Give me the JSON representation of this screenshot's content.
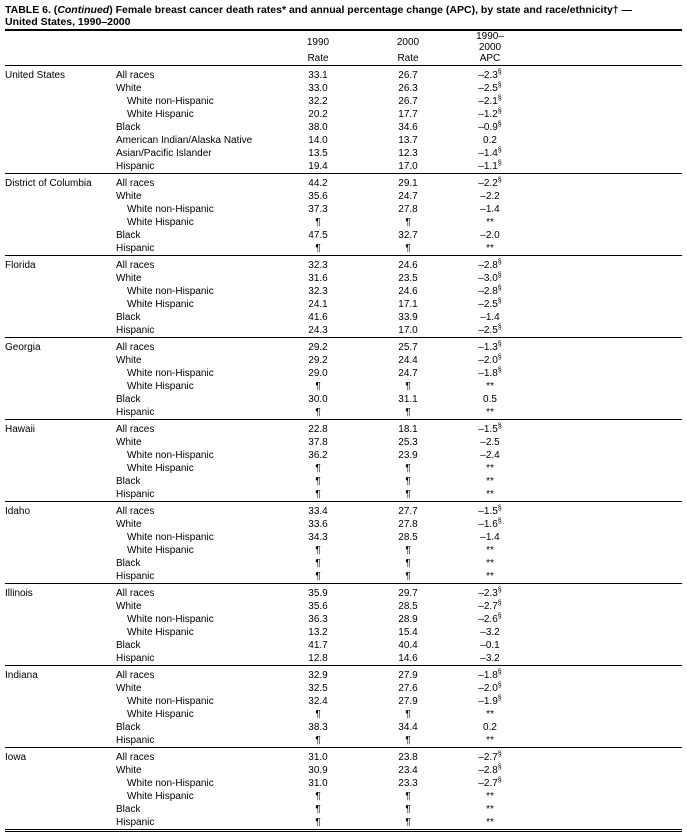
{
  "header": {
    "title_prefix": "TABLE 6. (",
    "title_italic": "Continued",
    "title_rest": ") Female breast cancer death rates* and annual percentage change (APC), by state and race/ethnicity† —",
    "title_line2": "United States, 1990–2000"
  },
  "columns": [
    {
      "top": "1990",
      "bottom": "Rate"
    },
    {
      "top": "2000",
      "bottom": "Rate"
    },
    {
      "top": "1990–2000",
      "bottom": "APC"
    }
  ],
  "groups": [
    {
      "state": "United States",
      "rows": [
        {
          "race": "All races",
          "r1990": "33.1",
          "r2000": "26.7",
          "apc": "–2.3",
          "note": "§"
        },
        {
          "race": "White",
          "r1990": "33.0",
          "r2000": "26.3",
          "apc": "–2.5",
          "note": "§"
        },
        {
          "race": "White non-Hispanic",
          "indent": true,
          "r1990": "32.2",
          "r2000": "26.7",
          "apc": "–2.1",
          "note": "§"
        },
        {
          "race": "White Hispanic",
          "indent": true,
          "r1990": "20.2",
          "r2000": "17.7",
          "apc": "–1.2",
          "note": "§"
        },
        {
          "race": "Black",
          "r1990": "38.0",
          "r2000": "34.6",
          "apc": "–0.9",
          "note": "§"
        },
        {
          "race": "American Indian/Alaska Native",
          "r1990": "14.0",
          "r2000": "13.7",
          "apc": "0.2"
        },
        {
          "race": "Asian/Pacific Islander",
          "r1990": "13.5",
          "r2000": "12.3",
          "apc": "–1.4",
          "note": "§"
        },
        {
          "race": "Hispanic",
          "r1990": "19.4",
          "r2000": "17.0",
          "apc": "–1.1",
          "note": "§"
        }
      ]
    },
    {
      "state": "District of Columbia",
      "rows": [
        {
          "race": "All races",
          "r1990": "44.2",
          "r2000": "29.1",
          "apc": "–2.2",
          "note": "§"
        },
        {
          "race": "White",
          "r1990": "35.6",
          "r2000": "24.7",
          "apc": "–2.2"
        },
        {
          "race": "White non-Hispanic",
          "indent": true,
          "r1990": "37.3",
          "r2000": "27.8",
          "apc": "–1.4"
        },
        {
          "race": "White Hispanic",
          "indent": true,
          "r1990": "¶",
          "r2000": "¶",
          "apc": "**"
        },
        {
          "race": "Black",
          "r1990": "47.5",
          "r2000": "32.7",
          "apc": "–2.0"
        },
        {
          "race": "Hispanic",
          "r1990": "¶",
          "r2000": "¶",
          "apc": "**"
        }
      ]
    },
    {
      "state": "Florida",
      "rows": [
        {
          "race": "All races",
          "r1990": "32.3",
          "r2000": "24.6",
          "apc": "–2.8",
          "note": "§"
        },
        {
          "race": "White",
          "r1990": "31.6",
          "r2000": "23.5",
          "apc": "–3.0",
          "note": "§"
        },
        {
          "race": "White non-Hispanic",
          "indent": true,
          "r1990": "32.3",
          "r2000": "24.6",
          "apc": "–2.8",
          "note": "§"
        },
        {
          "race": "White Hispanic",
          "indent": true,
          "r1990": "24.1",
          "r2000": "17.1",
          "apc": "–2.5",
          "note": "§"
        },
        {
          "race": "Black",
          "r1990": "41.6",
          "r2000": "33.9",
          "apc": "–1.4"
        },
        {
          "race": "Hispanic",
          "r1990": "24.3",
          "r2000": "17.0",
          "apc": "–2.5",
          "note": "§"
        }
      ]
    },
    {
      "state": "Georgia",
      "rows": [
        {
          "race": "All races",
          "r1990": "29.2",
          "r2000": "25.7",
          "apc": "–1.3",
          "note": "§"
        },
        {
          "race": "White",
          "r1990": "29.2",
          "r2000": "24.4",
          "apc": "–2.0",
          "note": "§"
        },
        {
          "race": "White non-Hispanic",
          "indent": true,
          "r1990": "29.0",
          "r2000": "24.7",
          "apc": "–1.8",
          "note": "§"
        },
        {
          "race": "White Hispanic",
          "indent": true,
          "r1990": "¶",
          "r2000": "¶",
          "apc": "**"
        },
        {
          "race": "Black",
          "r1990": "30.0",
          "r2000": "31.1",
          "apc": "0.5"
        },
        {
          "race": "Hispanic",
          "r1990": "¶",
          "r2000": "¶",
          "apc": "**"
        }
      ]
    },
    {
      "state": "Hawaii",
      "rows": [
        {
          "race": "All races",
          "r1990": "22.8",
          "r2000": "18.1",
          "apc": "–1.5",
          "note": "§"
        },
        {
          "race": "White",
          "r1990": "37.8",
          "r2000": "25.3",
          "apc": "–2.5"
        },
        {
          "race": "White non-Hispanic",
          "indent": true,
          "r1990": "36.2",
          "r2000": "23.9",
          "apc": "–2.4"
        },
        {
          "race": "White Hispanic",
          "indent": true,
          "r1990": "¶",
          "r2000": "¶",
          "apc": "**"
        },
        {
          "race": "Black",
          "r1990": "¶",
          "r2000": "¶",
          "apc": "**"
        },
        {
          "race": "Hispanic",
          "r1990": "¶",
          "r2000": "¶",
          "apc": "**"
        }
      ]
    },
    {
      "state": "Idaho",
      "rows": [
        {
          "race": "All races",
          "r1990": "33.4",
          "r2000": "27.7",
          "apc": "–1.5",
          "note": "§"
        },
        {
          "race": "White",
          "r1990": "33.6",
          "r2000": "27.8",
          "apc": "–1.6",
          "note": "§"
        },
        {
          "race": "White non-Hispanic",
          "indent": true,
          "r1990": "34.3",
          "r2000": "28.5",
          "apc": "–1.4"
        },
        {
          "race": "White Hispanic",
          "indent": true,
          "r1990": "¶",
          "r2000": "¶",
          "apc": "**"
        },
        {
          "race": "Black",
          "r1990": "¶",
          "r2000": "¶",
          "apc": "**"
        },
        {
          "race": "Hispanic",
          "r1990": "¶",
          "r2000": "¶",
          "apc": "**"
        }
      ]
    },
    {
      "state": "Illinois",
      "rows": [
        {
          "race": "All races",
          "r1990": "35.9",
          "r2000": "29.7",
          "apc": "–2.3",
          "note": "§"
        },
        {
          "race": "White",
          "r1990": "35.6",
          "r2000": "28.5",
          "apc": "–2.7",
          "note": "§"
        },
        {
          "race": "White non-Hispanic",
          "indent": true,
          "r1990": "36.3",
          "r2000": "28.9",
          "apc": "–2.6",
          "note": "§"
        },
        {
          "race": "White Hispanic",
          "indent": true,
          "r1990": "13.2",
          "r2000": "15.4",
          "apc": "–3.2"
        },
        {
          "race": "Black",
          "r1990": "41.7",
          "r2000": "40.4",
          "apc": "–0.1"
        },
        {
          "race": "Hispanic",
          "r1990": "12.8",
          "r2000": "14.6",
          "apc": "–3.2"
        }
      ]
    },
    {
      "state": "Indiana",
      "rows": [
        {
          "race": "All races",
          "r1990": "32.9",
          "r2000": "27.9",
          "apc": "–1.8",
          "note": "§"
        },
        {
          "race": "White",
          "r1990": "32.5",
          "r2000": "27.6",
          "apc": "–2.0",
          "note": "§"
        },
        {
          "race": "White non-Hispanic",
          "indent": true,
          "r1990": "32.4",
          "r2000": "27.9",
          "apc": "–1.9",
          "note": "§"
        },
        {
          "race": "White Hispanic",
          "indent": true,
          "r1990": "¶",
          "r2000": "¶",
          "apc": "**"
        },
        {
          "race": "Black",
          "r1990": "38.3",
          "r2000": "34.4",
          "apc": "0.2"
        },
        {
          "race": "Hispanic",
          "r1990": "¶",
          "r2000": "¶",
          "apc": "**"
        }
      ]
    },
    {
      "state": "Iowa",
      "rows": [
        {
          "race": "All races",
          "r1990": "31.0",
          "r2000": "23.8",
          "apc": "–2.7",
          "note": "§"
        },
        {
          "race": "White",
          "r1990": "30.9",
          "r2000": "23.4",
          "apc": "–2.8",
          "note": "§"
        },
        {
          "race": "White non-Hispanic",
          "indent": true,
          "r1990": "31.0",
          "r2000": "23.3",
          "apc": "–2.7",
          "note": "§"
        },
        {
          "race": "White Hispanic",
          "indent": true,
          "r1990": "¶",
          "r2000": "¶",
          "apc": "**"
        },
        {
          "race": "Black",
          "r1990": "¶",
          "r2000": "¶",
          "apc": "**"
        },
        {
          "race": "Hispanic",
          "r1990": "¶",
          "r2000": "¶",
          "apc": "**"
        }
      ]
    }
  ]
}
